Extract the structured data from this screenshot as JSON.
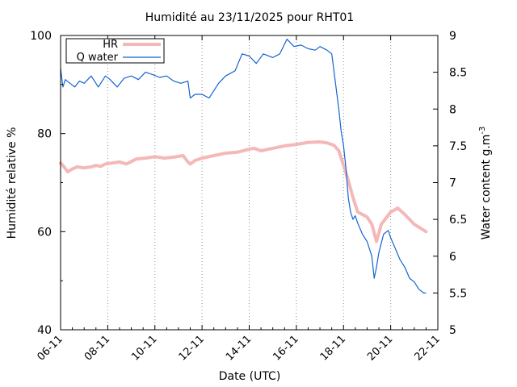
{
  "chart_data": {
    "type": "line",
    "title": "Humidité au 23/11/2025 pour RHT01",
    "xlabel": "Date (UTC)",
    "ylabel_left": "Humidité relative %",
    "ylabel_right_base": "Water content g.m",
    "ylabel_right_sup": "-3",
    "x_tick_labels": [
      "06-11",
      "08-11",
      "10-11",
      "12-11",
      "14-11",
      "16-11",
      "18-11",
      "20-11",
      "22-11"
    ],
    "x_range_days": [
      6,
      22
    ],
    "y_left_range": [
      40,
      100
    ],
    "y_left_ticks": [
      "40",
      "60",
      "80",
      "100"
    ],
    "y_right_range": [
      5,
      9
    ],
    "y_right_ticks": [
      "5",
      "5.5",
      "6",
      "6.5",
      "7",
      "7.5",
      "8",
      "8.5",
      "9"
    ],
    "grid": "vertical dotted lines at x ticks",
    "legend": "top-left",
    "colors": {
      "hr": "#f4b8b8",
      "water": "#1464d2"
    },
    "series": [
      {
        "name": "HR",
        "axis": "left",
        "x_day": [
          6.0,
          6.1,
          6.3,
          6.5,
          6.7,
          7.0,
          7.3,
          7.5,
          7.7,
          7.9,
          8.2,
          8.5,
          8.8,
          9.2,
          9.6,
          10.0,
          10.4,
          10.8,
          11.2,
          11.4,
          11.5,
          11.7,
          12.0,
          12.5,
          13.0,
          13.5,
          14.0,
          14.2,
          14.5,
          15.0,
          15.5,
          16.0,
          16.5,
          17.0,
          17.3,
          17.6,
          17.8,
          18.0,
          18.2,
          18.4,
          18.6,
          18.8,
          19.0,
          19.2,
          19.4,
          19.6,
          20.0,
          20.3,
          20.6,
          20.8,
          21.0,
          21.5
        ],
        "values": [
          74,
          73.5,
          72.2,
          72.8,
          73.2,
          73,
          73.2,
          73.5,
          73.3,
          73.8,
          74,
          74.2,
          73.8,
          74.8,
          75,
          75.3,
          75,
          75.2,
          75.5,
          74.2,
          73.8,
          74.5,
          75,
          75.5,
          76,
          76.2,
          76.8,
          77,
          76.5,
          77,
          77.5,
          77.8,
          78.2,
          78.3,
          78.1,
          77.6,
          76.5,
          73.5,
          70.5,
          67,
          64,
          63.5,
          63,
          61.5,
          58,
          61.5,
          64,
          64.8,
          63.5,
          62.5,
          61.5,
          60
        ]
      },
      {
        "name": "Q water",
        "axis": "right",
        "x_day": [
          6.0,
          6.1,
          6.2,
          6.4,
          6.6,
          6.8,
          7.0,
          7.3,
          7.6,
          7.9,
          8.1,
          8.4,
          8.7,
          9.0,
          9.3,
          9.6,
          9.9,
          10.2,
          10.5,
          10.8,
          11.1,
          11.4,
          11.5,
          11.7,
          12.0,
          12.3,
          12.7,
          13.0,
          13.4,
          13.7,
          14.0,
          14.3,
          14.6,
          15.0,
          15.3,
          15.6,
          15.9,
          16.2,
          16.5,
          16.8,
          17.0,
          17.3,
          17.5,
          17.8,
          17.9,
          18.0,
          18.1,
          18.2,
          18.3,
          18.4,
          18.5,
          18.6,
          18.8,
          19.0,
          19.2,
          19.3,
          19.4,
          19.5,
          19.7,
          19.9,
          20.0,
          20.2,
          20.4,
          20.6,
          20.8,
          21.0,
          21.2,
          21.4,
          21.5
        ],
        "values": [
          8.55,
          8.3,
          8.4,
          8.35,
          8.3,
          8.38,
          8.35,
          8.45,
          8.3,
          8.45,
          8.4,
          8.3,
          8.42,
          8.45,
          8.4,
          8.5,
          8.47,
          8.43,
          8.45,
          8.38,
          8.35,
          8.38,
          8.15,
          8.2,
          8.2,
          8.15,
          8.35,
          8.45,
          8.52,
          8.75,
          8.72,
          8.62,
          8.75,
          8.7,
          8.75,
          8.95,
          8.85,
          8.87,
          8.82,
          8.8,
          8.85,
          8.8,
          8.75,
          8.0,
          7.7,
          7.5,
          7.2,
          6.8,
          6.6,
          6.5,
          6.55,
          6.45,
          6.3,
          6.2,
          6.0,
          5.7,
          5.85,
          6.05,
          6.3,
          6.35,
          6.25,
          6.1,
          5.95,
          5.85,
          5.7,
          5.65,
          5.55,
          5.5,
          5.5
        ]
      }
    ]
  }
}
